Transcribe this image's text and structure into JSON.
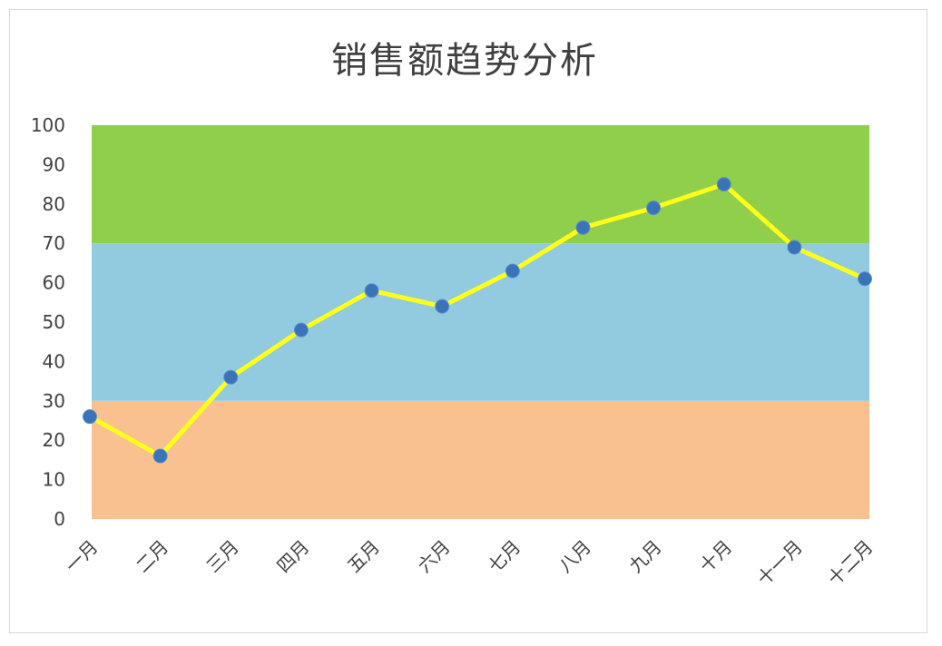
{
  "chart_data": {
    "type": "line",
    "title": "销售额趋势分析",
    "xlabel": "",
    "ylabel": "",
    "categories": [
      "一月",
      "二月",
      "三月",
      "四月",
      "五月",
      "六月",
      "七月",
      "八月",
      "九月",
      "十月",
      "十一月",
      "十二月"
    ],
    "series": [
      {
        "values": [
          26,
          16,
          36,
          48,
          58,
          54,
          63,
          74,
          79,
          85,
          69,
          61
        ]
      }
    ],
    "ylim": [
      0,
      100
    ],
    "yticks": [
      0,
      10,
      20,
      30,
      40,
      50,
      60,
      70,
      80,
      90,
      100
    ],
    "bands": [
      {
        "from": 0,
        "to": 30,
        "color": "#F8C18F"
      },
      {
        "from": 30,
        "to": 70,
        "color": "#92CADF"
      },
      {
        "from": 70,
        "to": 100,
        "color": "#8FCF4C"
      }
    ],
    "line_color": "#FFFF1A",
    "marker_color": "#3A73B8",
    "grid": false,
    "legend": "none"
  }
}
